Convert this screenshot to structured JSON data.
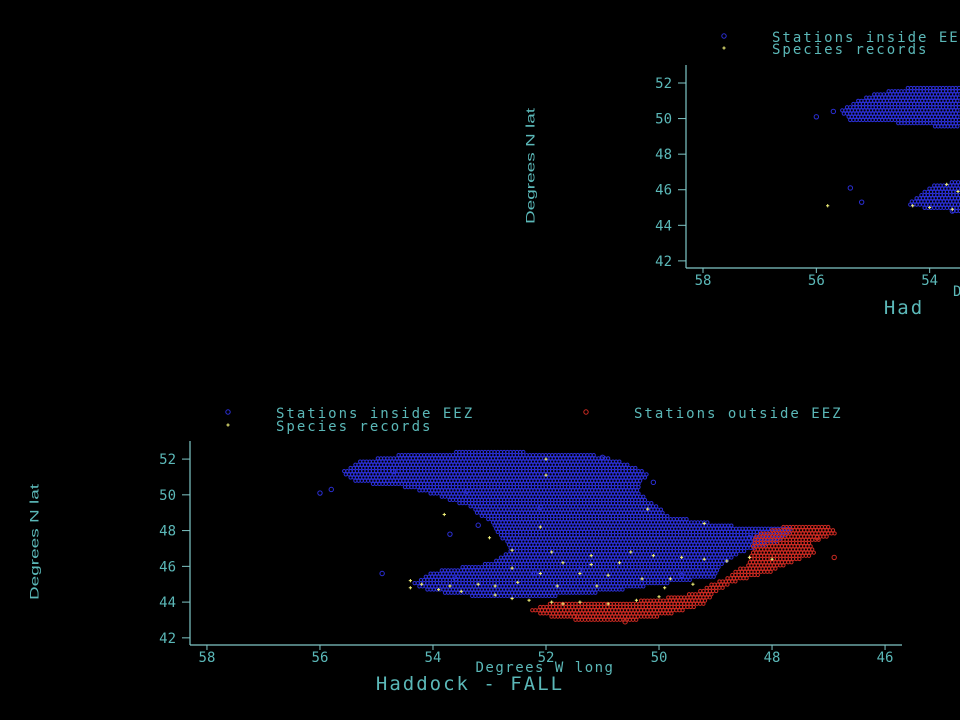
{
  "colors": {
    "background": "#000000",
    "axis": "#7fc7c7",
    "text": "#5bb8b8",
    "inside": "#2b2fd6",
    "outside": "#cc2a22",
    "records": "#f2f27a"
  },
  "chart_data": [
    {
      "type": "scatter",
      "title": "Haddock - FALL",
      "xlabel": "Degrees W long",
      "ylabel": "Degrees N lat",
      "x_reversed": true,
      "xlim": [
        58.3,
        45.7
      ],
      "ylim": [
        41.6,
        52.9
      ],
      "xticks": [
        58,
        56,
        54,
        52,
        50,
        48,
        46
      ],
      "yticks": [
        52,
        50,
        48,
        46,
        44,
        42
      ],
      "grid": false,
      "legend_position": "top",
      "series": [
        {
          "name": "Stations inside EEZ",
          "marker": "circle",
          "color": "#2b2fd6",
          "regions": [
            {
              "outline": [
                [
                  55.3,
                  51.9
                ],
                [
                  54.5,
                  52.3
                ],
                [
                  53.6,
                  52.4
                ],
                [
                  52.4,
                  52.4
                ],
                [
                  51.2,
                  52.3
                ],
                [
                  50.6,
                  51.8
                ],
                [
                  50.2,
                  51.2
                ],
                [
                  50.4,
                  50.2
                ],
                [
                  50.1,
                  49.5
                ],
                [
                  49.8,
                  48.8
                ],
                [
                  48.8,
                  48.3
                ],
                [
                  47.6,
                  48.1
                ],
                [
                  47.9,
                  47.4
                ],
                [
                  48.6,
                  46.7
                ],
                [
                  48.9,
                  46.0
                ],
                [
                  49.0,
                  45.4
                ],
                [
                  50.0,
                  45.0
                ],
                [
                  50.8,
                  44.6
                ],
                [
                  52.0,
                  44.3
                ],
                [
                  53.0,
                  44.2
                ],
                [
                  54.0,
                  44.6
                ],
                [
                  54.4,
                  45.0
                ],
                [
                  54.0,
                  45.7
                ],
                [
                  53.0,
                  46.2
                ],
                [
                  52.6,
                  46.9
                ],
                [
                  52.8,
                  47.6
                ],
                [
                  53.0,
                  48.5
                ],
                [
                  53.4,
                  49.4
                ],
                [
                  54.4,
                  50.4
                ],
                [
                  55.4,
                  50.7
                ],
                [
                  55.6,
                  51.3
                ]
              ]
            }
          ],
          "points": [
            [
              56.0,
              50.1
            ],
            [
              55.8,
              50.3
            ],
            [
              54.7,
              51.3
            ],
            [
              53.4,
              50.2
            ],
            [
              51.0,
              52.1
            ],
            [
              50.1,
              50.7
            ],
            [
              52.1,
              49.3
            ],
            [
              53.2,
              48.3
            ],
            [
              48.4,
              47.6
            ],
            [
              51.4,
              45.8
            ],
            [
              52.2,
              45.6
            ],
            [
              53.6,
              45.3
            ],
            [
              49.6,
              45.5
            ],
            [
              54.9,
              45.6
            ],
            [
              53.7,
              47.8
            ]
          ]
        },
        {
          "name": "Stations outside EEZ",
          "marker": "circle",
          "color": "#cc2a22",
          "regions": [
            {
              "outline": [
                [
                  48.3,
                  47.8
                ],
                [
                  47.8,
                  48.2
                ],
                [
                  47.0,
                  48.2
                ],
                [
                  46.8,
                  47.9
                ],
                [
                  47.3,
                  47.3
                ],
                [
                  47.2,
                  46.7
                ],
                [
                  47.6,
                  46.3
                ],
                [
                  48.0,
                  45.7
                ],
                [
                  48.6,
                  45.2
                ],
                [
                  49.0,
                  44.6
                ],
                [
                  49.2,
                  43.9
                ],
                [
                  49.8,
                  43.3
                ],
                [
                  50.4,
                  43.0
                ],
                [
                  51.1,
                  42.9
                ],
                [
                  51.8,
                  43.1
                ],
                [
                  52.3,
                  43.5
                ],
                [
                  52.0,
                  43.9
                ],
                [
                  51.0,
                  44.0
                ],
                [
                  50.2,
                  44.1
                ],
                [
                  49.4,
                  44.5
                ],
                [
                  48.8,
                  45.4
                ],
                [
                  48.4,
                  46.2
                ]
              ]
            }
          ],
          "points": [
            [
              46.9,
              46.5
            ],
            [
              47.2,
              47.6
            ],
            [
              50.6,
              42.9
            ],
            [
              51.5,
              43.2
            ]
          ]
        },
        {
          "name": "Species records",
          "marker": "plus",
          "color": "#f2f27a",
          "points": [
            [
              52.0,
              52.0
            ],
            [
              52.0,
              51.1
            ],
            [
              50.2,
              49.2
            ],
            [
              49.2,
              48.4
            ],
            [
              52.1,
              48.2
            ],
            [
              53.8,
              48.9
            ],
            [
              53.0,
              47.6
            ],
            [
              52.6,
              46.9
            ],
            [
              51.9,
              46.8
            ],
            [
              51.2,
              46.6
            ],
            [
              50.5,
              46.8
            ],
            [
              50.1,
              46.6
            ],
            [
              49.6,
              46.5
            ],
            [
              49.2,
              46.4
            ],
            [
              48.8,
              46.3
            ],
            [
              48.4,
              46.5
            ],
            [
              48.0,
              46.4
            ],
            [
              51.7,
              46.2
            ],
            [
              51.2,
              46.1
            ],
            [
              50.7,
              46.2
            ],
            [
              52.6,
              45.9
            ],
            [
              52.1,
              45.6
            ],
            [
              51.4,
              45.6
            ],
            [
              50.9,
              45.5
            ],
            [
              50.3,
              45.3
            ],
            [
              49.8,
              45.3
            ],
            [
              49.4,
              45.0
            ],
            [
              49.9,
              44.8
            ],
            [
              51.1,
              44.9
            ],
            [
              51.8,
              44.9
            ],
            [
              52.5,
              45.1
            ],
            [
              53.2,
              45.0
            ],
            [
              53.7,
              44.9
            ],
            [
              54.2,
              45.0
            ],
            [
              54.4,
              44.8
            ],
            [
              53.5,
              44.6
            ],
            [
              52.9,
              44.4
            ],
            [
              52.6,
              44.2
            ],
            [
              52.3,
              44.1
            ],
            [
              51.9,
              44.0
            ],
            [
              51.4,
              44.0
            ],
            [
              50.9,
              43.9
            ],
            [
              50.4,
              44.1
            ],
            [
              50.0,
              44.3
            ],
            [
              51.7,
              43.9
            ],
            [
              52.9,
              44.9
            ],
            [
              53.9,
              44.7
            ],
            [
              54.4,
              45.2
            ]
          ]
        }
      ]
    },
    {
      "type": "scatter",
      "title": "Had",
      "xlabel": "D",
      "ylabel": "Degrees N lat",
      "x_reversed": true,
      "xlim": [
        58.3,
        52.4
      ],
      "ylim": [
        41.6,
        52.9
      ],
      "xticks": [
        58,
        56,
        54
      ],
      "yticks": [
        52,
        50,
        48,
        46,
        44,
        42
      ],
      "grid": false,
      "legend_position": "top",
      "legend": [
        "Stations inside EE",
        "Species records"
      ],
      "series": [
        {
          "name": "Stations inside EE",
          "marker": "circle",
          "color": "#2b2fd6",
          "regions": [
            {
              "outline": [
                [
                  55.6,
                  50.5
                ],
                [
                  55.0,
                  51.4
                ],
                [
                  54.3,
                  51.8
                ],
                [
                  53.3,
                  51.9
                ],
                [
                  52.4,
                  51.9
                ],
                [
                  52.4,
                  49.5
                ],
                [
                  53.0,
                  49.3
                ],
                [
                  54.4,
                  49.7
                ],
                [
                  55.4,
                  49.9
                ]
              ]
            },
            {
              "outline": [
                [
                  54.4,
                  45.2
                ],
                [
                  54.0,
                  46.2
                ],
                [
                  53.3,
                  46.6
                ],
                [
                  52.4,
                  46.6
                ],
                [
                  52.4,
                  44.5
                ],
                [
                  53.2,
                  44.7
                ],
                [
                  54.0,
                  44.9
                ]
              ]
            }
          ],
          "points": [
            [
              56.0,
              50.1
            ],
            [
              55.7,
              50.4
            ],
            [
              55.2,
              45.3
            ],
            [
              55.4,
              46.1
            ],
            [
              53.6,
              44.8
            ]
          ]
        },
        {
          "name": "Species records",
          "marker": "plus",
          "color": "#f2f27a",
          "points": [
            [
              55.8,
              45.1
            ],
            [
              53.0,
              46.1
            ],
            [
              53.5,
              45.9
            ],
            [
              53.7,
              46.3
            ],
            [
              53.1,
              46.3
            ],
            [
              52.7,
              45.8
            ],
            [
              52.6,
              45.4
            ],
            [
              53.2,
              45.6
            ],
            [
              52.9,
              45.0
            ],
            [
              53.4,
              45.3
            ],
            [
              54.3,
              45.1
            ],
            [
              54.0,
              45.0
            ],
            [
              53.6,
              44.9
            ],
            [
              53.2,
              44.8
            ],
            [
              52.8,
              44.7
            ],
            [
              52.5,
              44.6
            ]
          ]
        }
      ]
    }
  ]
}
